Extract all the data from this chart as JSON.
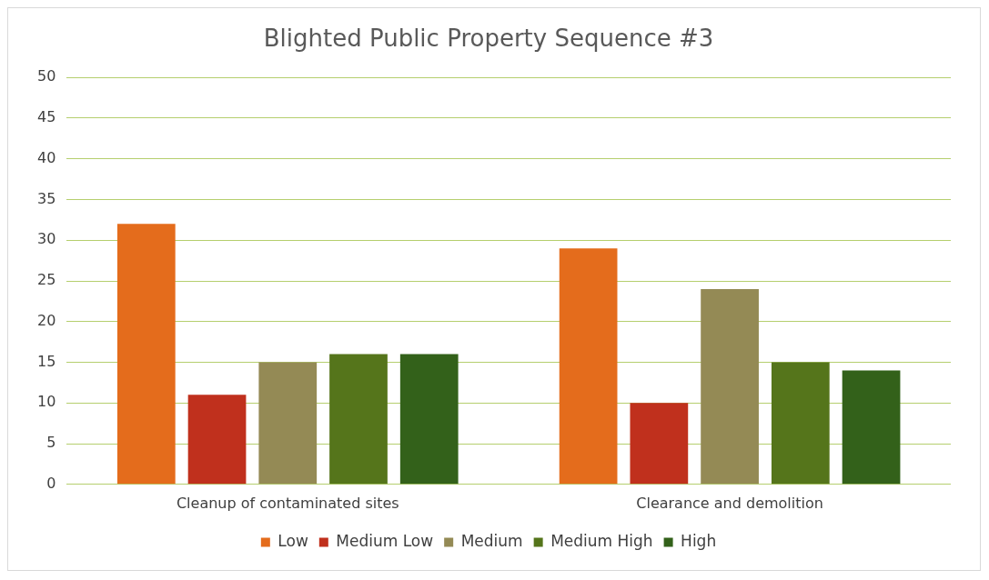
{
  "chart_data": {
    "type": "bar",
    "title": "Blighted Public Property Sequence #3",
    "categories": [
      "Cleanup of contaminated sites",
      "Clearance and demolition"
    ],
    "series": [
      {
        "name": "Low",
        "color": "#e46c1c",
        "values": [
          32,
          29
        ]
      },
      {
        "name": "Medium Low",
        "color": "#c0301d",
        "values": [
          11,
          10
        ]
      },
      {
        "name": "Medium",
        "color": "#948a55",
        "values": [
          15,
          24
        ]
      },
      {
        "name": "Medium High",
        "color": "#55751b",
        "values": [
          16,
          15
        ]
      },
      {
        "name": "High",
        "color": "#33611a",
        "values": [
          16,
          14
        ]
      }
    ],
    "ylim": [
      0,
      50
    ],
    "yticks": [
      0,
      5,
      10,
      15,
      20,
      25,
      30,
      35,
      40,
      45,
      50
    ],
    "grid": "y",
    "legend": "bottom"
  }
}
